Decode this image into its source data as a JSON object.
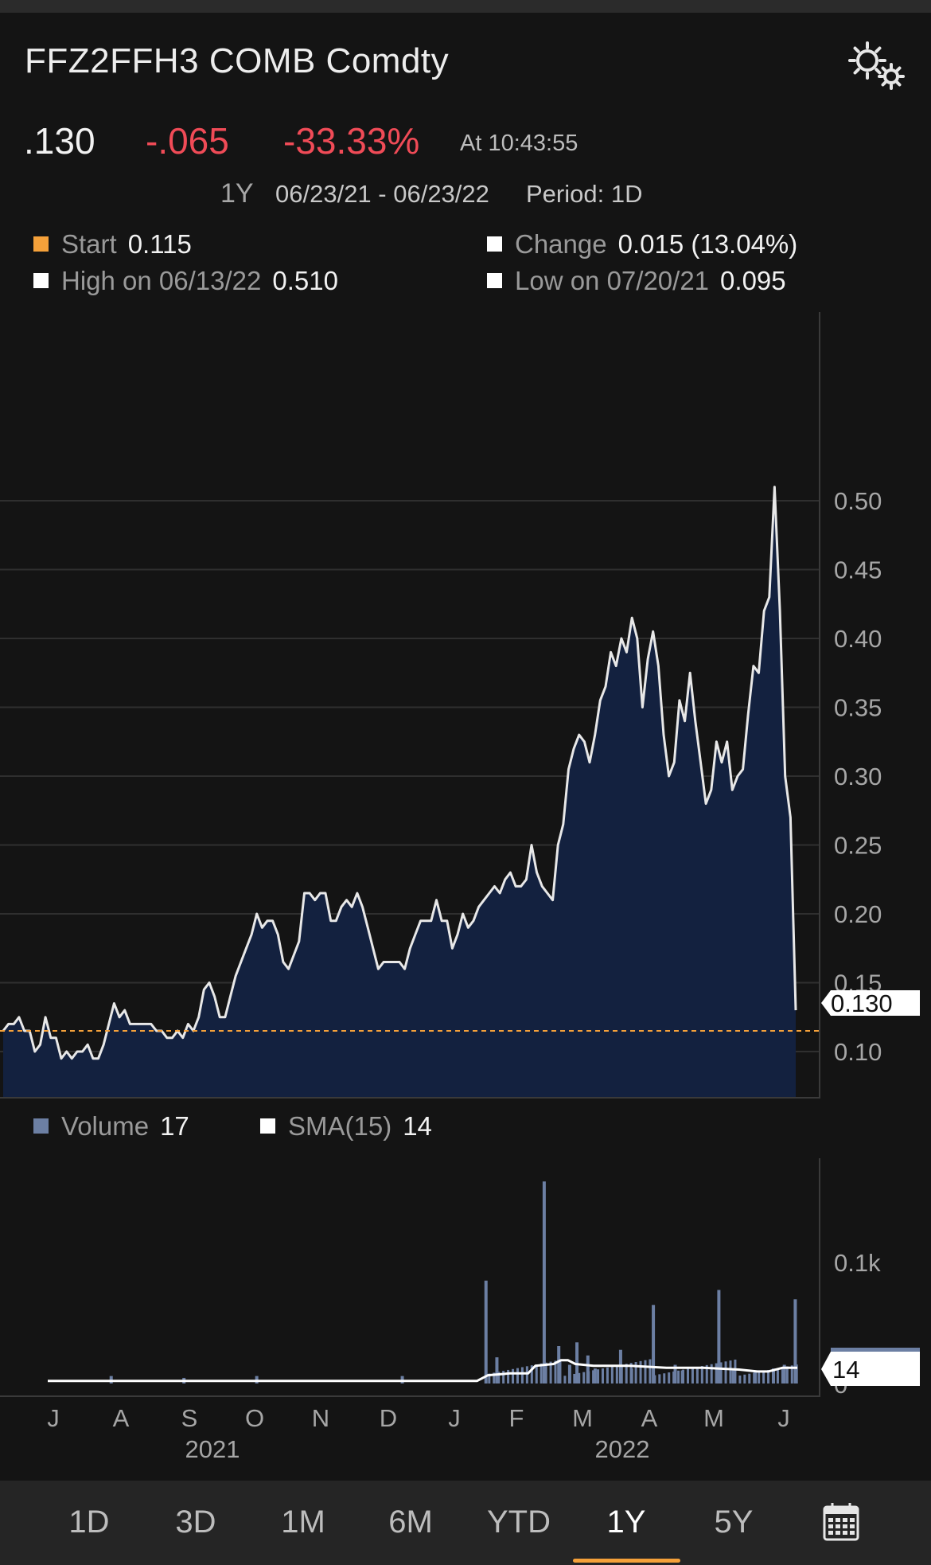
{
  "header": {
    "title": "FFZ2FFH3 COMB Comdty",
    "gear_icon": "settings-gears-icon"
  },
  "quote": {
    "last": ".130",
    "change": "-.065",
    "change_pct": "-33.33%",
    "time": "At 10:43:55"
  },
  "range": {
    "span": "1Y",
    "dates": "06/23/21 - 06/23/22",
    "period": "Period: 1D"
  },
  "stats": {
    "start_label": "Start",
    "start_value": "0.115",
    "change_label": "Change",
    "change_value": "0.015 (13.04%)",
    "high_label": "High on 06/13/22",
    "high_value": "0.510",
    "low_label": "Low on 07/20/21",
    "low_value": "0.095"
  },
  "volume_legend": {
    "volume_label": "Volume",
    "volume_value": "17",
    "sma_label": "SMA(15)",
    "sma_value": "14"
  },
  "colors": {
    "price_line": "#e8e8e8",
    "price_fill": "#13213f",
    "start_line": "#f5a13a",
    "volume_bar": "#6c7fa3",
    "negative": "#f04b57",
    "accent": "#f5a13a"
  },
  "chart_data": {
    "type": "area",
    "title": "FFZ2FFH3 COMB Comdty",
    "x_months": [
      "J",
      "A",
      "S",
      "O",
      "N",
      "D",
      "J",
      "F",
      "M",
      "A",
      "M",
      "J"
    ],
    "x_years": [
      "2021",
      "2022"
    ],
    "price": {
      "ylim": [
        0.075,
        0.53
      ],
      "yticks": [
        "0.10",
        "0.15",
        "0.20",
        "0.25",
        "0.30",
        "0.35",
        "0.40",
        "0.45",
        "0.50"
      ],
      "start_level": 0.115,
      "last_label": "0.130",
      "values": [
        0.115,
        0.12,
        0.12,
        0.125,
        0.115,
        0.115,
        0.1,
        0.105,
        0.125,
        0.11,
        0.11,
        0.095,
        0.1,
        0.095,
        0.1,
        0.1,
        0.105,
        0.095,
        0.095,
        0.105,
        0.12,
        0.135,
        0.125,
        0.13,
        0.12,
        0.12,
        0.12,
        0.12,
        0.12,
        0.115,
        0.115,
        0.11,
        0.11,
        0.115,
        0.11,
        0.12,
        0.115,
        0.125,
        0.145,
        0.15,
        0.14,
        0.125,
        0.125,
        0.14,
        0.155,
        0.165,
        0.175,
        0.185,
        0.2,
        0.19,
        0.195,
        0.195,
        0.185,
        0.165,
        0.16,
        0.17,
        0.18,
        0.215,
        0.215,
        0.21,
        0.215,
        0.215,
        0.195,
        0.195,
        0.205,
        0.21,
        0.205,
        0.215,
        0.205,
        0.19,
        0.175,
        0.16,
        0.165,
        0.165,
        0.165,
        0.165,
        0.16,
        0.175,
        0.185,
        0.195,
        0.195,
        0.195,
        0.21,
        0.195,
        0.195,
        0.175,
        0.185,
        0.2,
        0.19,
        0.195,
        0.205,
        0.21,
        0.215,
        0.22,
        0.215,
        0.225,
        0.23,
        0.22,
        0.22,
        0.225,
        0.25,
        0.23,
        0.22,
        0.215,
        0.21,
        0.25,
        0.265,
        0.305,
        0.32,
        0.33,
        0.325,
        0.31,
        0.33,
        0.355,
        0.365,
        0.39,
        0.38,
        0.4,
        0.39,
        0.415,
        0.4,
        0.35,
        0.385,
        0.405,
        0.38,
        0.33,
        0.3,
        0.31,
        0.355,
        0.34,
        0.375,
        0.34,
        0.31,
        0.28,
        0.29,
        0.325,
        0.31,
        0.325,
        0.29,
        0.3,
        0.305,
        0.345,
        0.38,
        0.375,
        0.42,
        0.43,
        0.51,
        0.42,
        0.3,
        0.27,
        0.13
      ]
    },
    "volume": {
      "yticks": [
        "0.1k",
        "0"
      ],
      "ymax": 100,
      "tick_value": 65,
      "last_label": "14",
      "sma_label": "SMA(15)",
      "spikes": [
        [
          17,
          4
        ],
        [
          37,
          3
        ],
        [
          57,
          4
        ],
        [
          97,
          4
        ],
        [
          120,
          55
        ],
        [
          123,
          14
        ],
        [
          136,
          108
        ],
        [
          140,
          20
        ],
        [
          143,
          10
        ],
        [
          145,
          22
        ],
        [
          148,
          15
        ],
        [
          150,
          8
        ],
        [
          157,
          18
        ],
        [
          160,
          8
        ],
        [
          166,
          42
        ],
        [
          172,
          10
        ],
        [
          174,
          7
        ],
        [
          184,
          50
        ],
        [
          188,
          8
        ],
        [
          194,
          6
        ],
        [
          199,
          8
        ],
        [
          202,
          10
        ],
        [
          205,
          45
        ]
      ],
      "base": [
        0,
        1,
        2,
        3,
        0,
        1,
        4,
        5,
        2,
        6,
        7,
        8,
        9,
        10,
        11,
        12,
        13,
        14,
        15,
        16,
        17,
        18,
        19,
        20,
        21
      ],
      "sma": [
        [
          0,
          1
        ],
        [
          118,
          1
        ],
        [
          121,
          4
        ],
        [
          127,
          5
        ],
        [
          132,
          5
        ],
        [
          134,
          9
        ],
        [
          139,
          10
        ],
        [
          141,
          12
        ],
        [
          143,
          12
        ],
        [
          145,
          10
        ],
        [
          150,
          9
        ],
        [
          155,
          9
        ],
        [
          160,
          9
        ],
        [
          170,
          8
        ],
        [
          180,
          8
        ],
        [
          190,
          7
        ],
        [
          195,
          6
        ],
        [
          198,
          6
        ],
        [
          202,
          8
        ],
        [
          206,
          8
        ]
      ]
    }
  },
  "tabs": {
    "t1d": "1D",
    "t3d": "3D",
    "t1m": "1M",
    "t6m": "6M",
    "tytd": "YTD",
    "t1y": "1Y",
    "t5y": "5Y",
    "calendar_icon": "calendar-icon"
  }
}
